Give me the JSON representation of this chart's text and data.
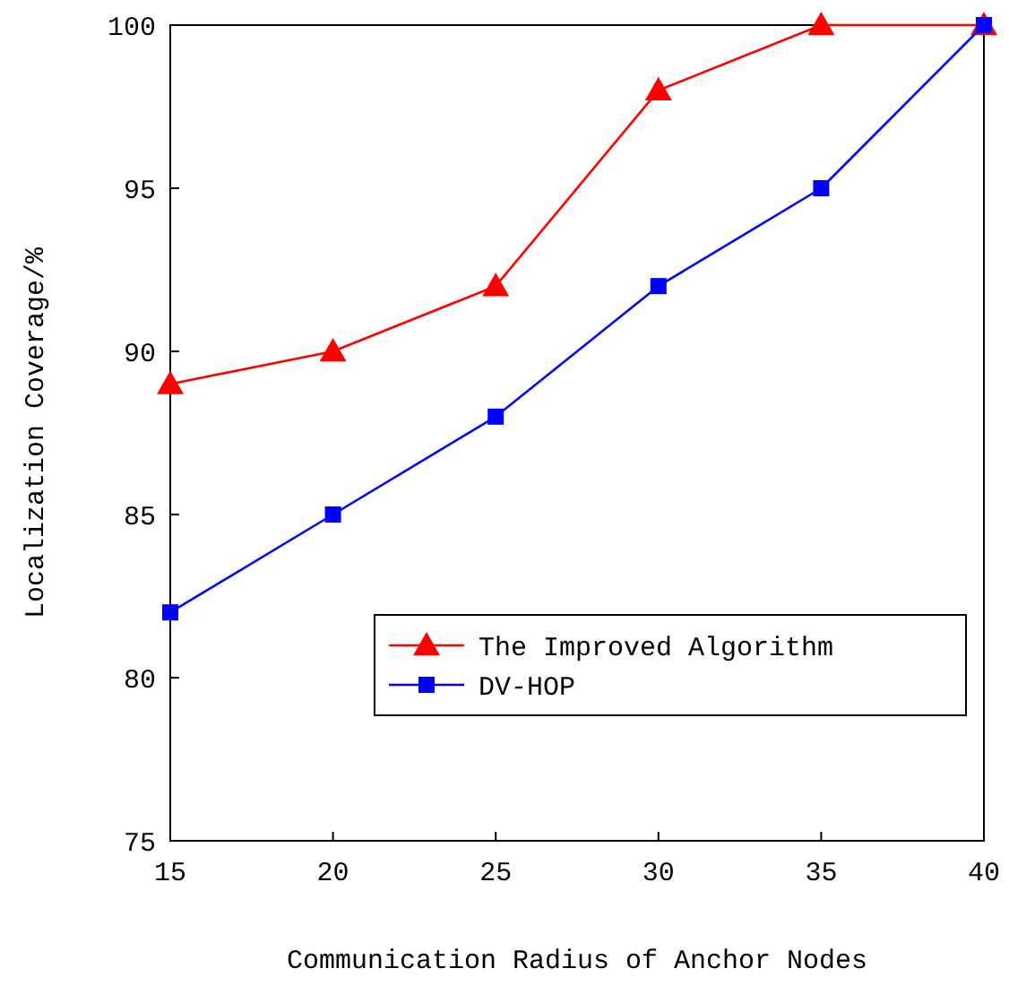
{
  "chart_data": {
    "type": "line",
    "xlabel": "Communication Radius of Anchor Nodes",
    "ylabel": "Localization Coverage/%",
    "x": [
      15,
      20,
      25,
      30,
      35,
      40
    ],
    "xlim": [
      15,
      40
    ],
    "xticks": [
      15,
      20,
      25,
      30,
      35,
      40
    ],
    "ylim": [
      75,
      100
    ],
    "yticks": [
      75,
      80,
      85,
      90,
      95,
      100
    ],
    "grid": false,
    "legend": "bottom right",
    "line_style": "solid",
    "series": [
      {
        "name": "The Improved Algorithm",
        "color": "#ff0000",
        "marker": "triangle",
        "values": [
          89,
          90,
          92,
          98,
          100,
          100
        ]
      },
      {
        "name": "DV-HOP",
        "color": "#0000ff",
        "marker": "square",
        "values": [
          82,
          85,
          88,
          92,
          95,
          100
        ]
      }
    ]
  }
}
